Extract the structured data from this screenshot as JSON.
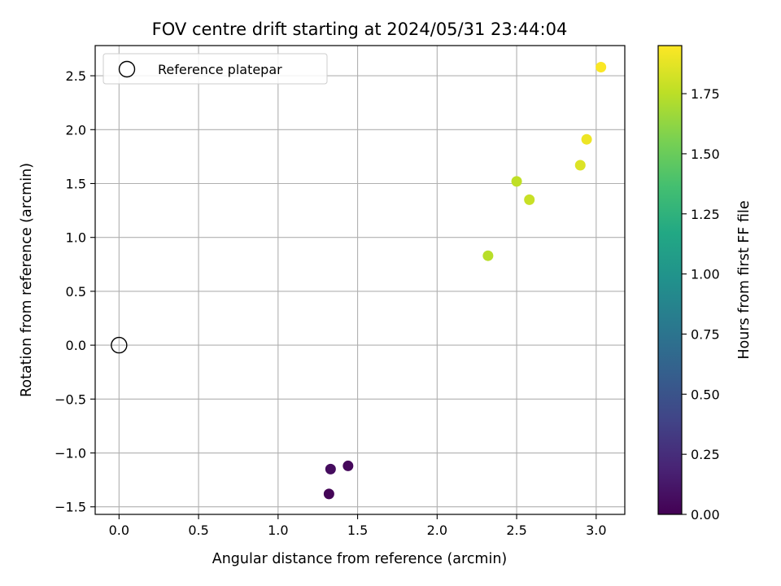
{
  "chart_data": {
    "type": "scatter",
    "title": "FOV centre drift starting at 2024/05/31 23:44:04",
    "xlabel": "Angular distance from reference (arcmin)",
    "ylabel": "Rotation from reference (arcmin)",
    "xlim": [
      -0.15,
      3.18
    ],
    "ylim": [
      -1.57,
      2.78
    ],
    "xticks": [
      0.0,
      0.5,
      1.0,
      1.5,
      2.0,
      2.5,
      3.0
    ],
    "xtick_labels": [
      "0.0",
      "0.5",
      "1.0",
      "1.5",
      "2.0",
      "2.5",
      "3.0"
    ],
    "yticks": [
      -1.5,
      -1.0,
      -0.5,
      0.0,
      0.5,
      1.0,
      1.5,
      2.0,
      2.5
    ],
    "ytick_labels": [
      "−1.5",
      "−1.0",
      "−0.5",
      "0.0",
      "0.5",
      "1.0",
      "1.5",
      "2.0",
      "2.5"
    ],
    "grid": true,
    "legend": {
      "placement": "upper-left",
      "entries": [
        "Reference platepar"
      ]
    },
    "reference": {
      "name": "Reference platepar",
      "x": 0.0,
      "y": 0.0
    },
    "points": [
      {
        "x": 1.32,
        "y": -1.38,
        "c": 0.02
      },
      {
        "x": 1.33,
        "y": -1.15,
        "c": 0.06
      },
      {
        "x": 1.44,
        "y": -1.12,
        "c": 0.04
      },
      {
        "x": 2.32,
        "y": 0.83,
        "c": 1.74
      },
      {
        "x": 2.5,
        "y": 1.52,
        "c": 1.76
      },
      {
        "x": 2.58,
        "y": 1.35,
        "c": 1.79
      },
      {
        "x": 2.9,
        "y": 1.67,
        "c": 1.85
      },
      {
        "x": 2.94,
        "y": 1.91,
        "c": 1.9
      },
      {
        "x": 3.03,
        "y": 2.58,
        "c": 1.94
      }
    ],
    "colorbar": {
      "label": "Hours from first FF file",
      "colormap": "viridis",
      "range": [
        0.0,
        1.95
      ],
      "ticks": [
        0.0,
        0.25,
        0.5,
        0.75,
        1.0,
        1.25,
        1.5,
        1.75
      ],
      "tick_labels": [
        "0.00",
        "0.25",
        "0.50",
        "0.75",
        "1.00",
        "1.25",
        "1.50",
        "1.75"
      ]
    },
    "colors": {
      "reference_marker": "#000000",
      "grid": "#b0b0b0"
    }
  }
}
